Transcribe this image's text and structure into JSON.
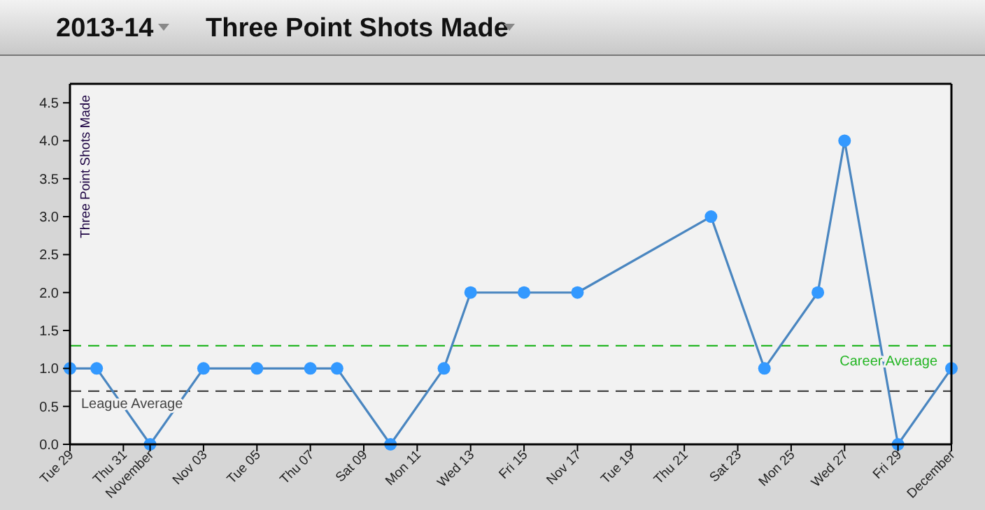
{
  "chart_data": {
    "type": "line",
    "title": "2013-14",
    "subtitle": "Three Point Shots Made",
    "ylabel": "Three Point Shots Made",
    "x": [
      "2013-10-29",
      "2013-10-30",
      "2013-11-01",
      "2013-11-03",
      "2013-11-05",
      "2013-11-07",
      "2013-11-08",
      "2013-11-10",
      "2013-11-12",
      "2013-11-13",
      "2013-11-15",
      "2013-11-17",
      "2013-11-22",
      "2013-11-24",
      "2013-11-26",
      "2013-11-27",
      "2013-11-29",
      "2013-12-01"
    ],
    "series": [
      {
        "color": "#4a86c0",
        "values": [
          1,
          1,
          0,
          1,
          1,
          1,
          1,
          0,
          1,
          2,
          2,
          2,
          3,
          1,
          2,
          4,
          0,
          1
        ]
      }
    ],
    "marker": "circle",
    "line_style": "solid",
    "xlim": [
      "2013-10-29",
      "2013-12-01"
    ],
    "xticks": [
      {
        "value": "2013-10-29",
        "label": "Tue 29"
      },
      {
        "value": "2013-10-31",
        "label": "Thu 31"
      },
      {
        "value": "2013-11-01",
        "label": "November"
      },
      {
        "value": "2013-11-03",
        "label": "Nov 03"
      },
      {
        "value": "2013-11-05",
        "label": "Tue 05"
      },
      {
        "value": "2013-11-07",
        "label": "Thu 07"
      },
      {
        "value": "2013-11-09",
        "label": "Sat 09"
      },
      {
        "value": "2013-11-11",
        "label": "Mon 11"
      },
      {
        "value": "2013-11-13",
        "label": "Wed 13"
      },
      {
        "value": "2013-11-15",
        "label": "Fri 15"
      },
      {
        "value": "2013-11-17",
        "label": "Nov 17"
      },
      {
        "value": "2013-11-19",
        "label": "Tue 19"
      },
      {
        "value": "2013-11-21",
        "label": "Thu 21"
      },
      {
        "value": "2013-11-23",
        "label": "Sat 23"
      },
      {
        "value": "2013-11-25",
        "label": "Mon 25"
      },
      {
        "value": "2013-11-27",
        "label": "Wed 27"
      },
      {
        "value": "2013-11-29",
        "label": "Fri 29"
      },
      {
        "value": "2013-12-01",
        "label": "December"
      }
    ],
    "ylim": [
      0,
      4.75
    ],
    "yticks": [
      {
        "value": 0,
        "label": "0.0"
      },
      {
        "value": 0.5,
        "label": "0.5"
      },
      {
        "value": 1,
        "label": "1.0"
      },
      {
        "value": 1.5,
        "label": "1.5"
      },
      {
        "value": 2,
        "label": "2.0"
      },
      {
        "value": 2.5,
        "label": "2.5"
      },
      {
        "value": 3,
        "label": "3.0"
      },
      {
        "value": 3.5,
        "label": "3.5"
      },
      {
        "value": 4,
        "label": "4.0"
      },
      {
        "value": 4.5,
        "label": "4.5"
      }
    ],
    "ref_lines": [
      {
        "axis": "y",
        "value": 1.3,
        "label": "Career Average",
        "color": "#22b522",
        "line_style": "dashed"
      },
      {
        "axis": "y",
        "value": 0.7,
        "label": "League Average",
        "color": "#444444",
        "line_style": "dashed"
      }
    ]
  }
}
